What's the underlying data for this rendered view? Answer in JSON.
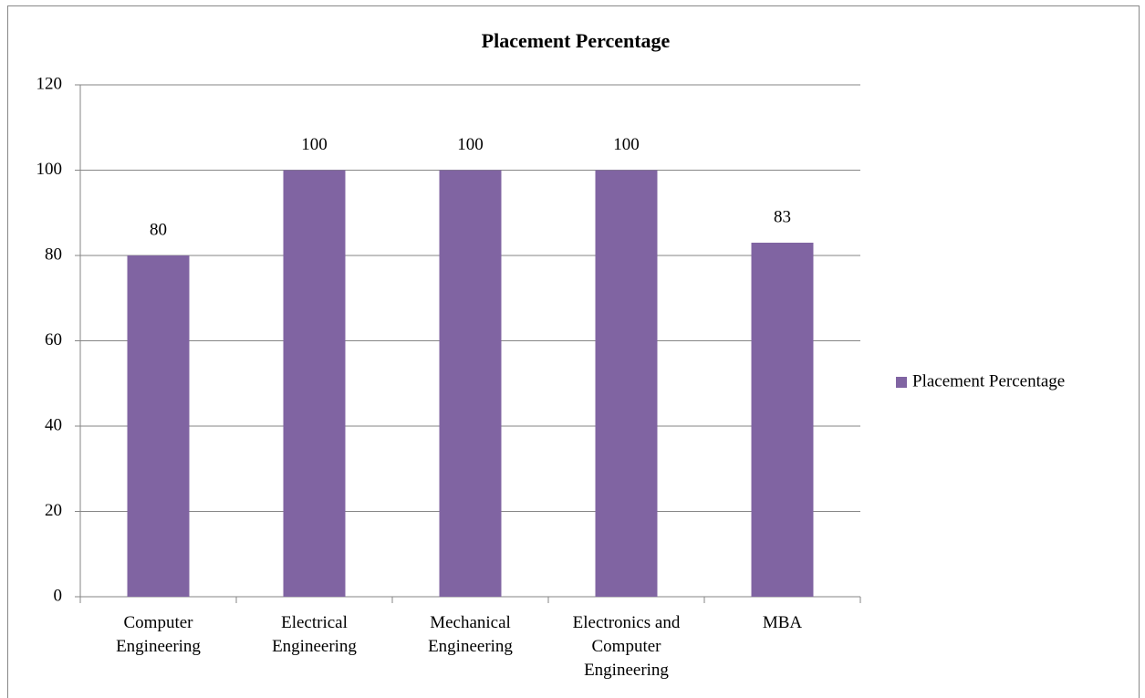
{
  "chart_data": {
    "type": "bar",
    "title": "Placement Percentage",
    "categories": [
      "Computer Engineering",
      "Electrical Engineering",
      "Mechanical Engineering",
      "Electronics and Computer Engineering",
      "MBA"
    ],
    "series": [
      {
        "name": "Placement Percentage",
        "color": "#8064a2",
        "values": [
          80,
          100,
          100,
          100,
          83
        ]
      }
    ],
    "ylim": [
      0,
      120
    ],
    "yticks": [
      0,
      20,
      40,
      60,
      80,
      100,
      120
    ],
    "grid": true,
    "legend": "right"
  }
}
